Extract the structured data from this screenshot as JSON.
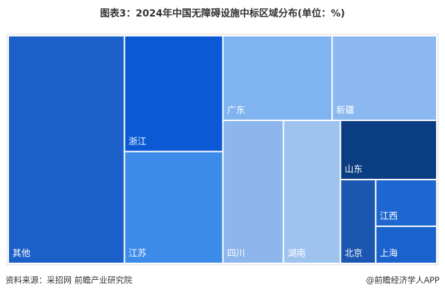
{
  "chart_data": {
    "type": "treemap",
    "title": "图表3：2024年中国无障碍设施中标区域分布(单位：%)",
    "categories": [
      "其他",
      "浙江",
      "江苏",
      "广东",
      "新疆",
      "四川",
      "湖南",
      "山东",
      "北京",
      "江西",
      "上海"
    ],
    "values": [
      26.9,
      11.6,
      11.2,
      9.4,
      9.0,
      8.8,
      8.3,
      5.8,
      3.0,
      2.9,
      2.3
    ],
    "colors": [
      "#1b60c9",
      "#0b59d5",
      "#3d8be8",
      "#80b4f1",
      "#8ab8ef",
      "#8db7ec",
      "#9ec3ef",
      "#0a3d82",
      "#1b56b0",
      "#1f67d0",
      "#1a63cd"
    ],
    "source": "资料来源：采招网 前瞻产业研究院",
    "credit": "@前瞻经济学人APP"
  }
}
